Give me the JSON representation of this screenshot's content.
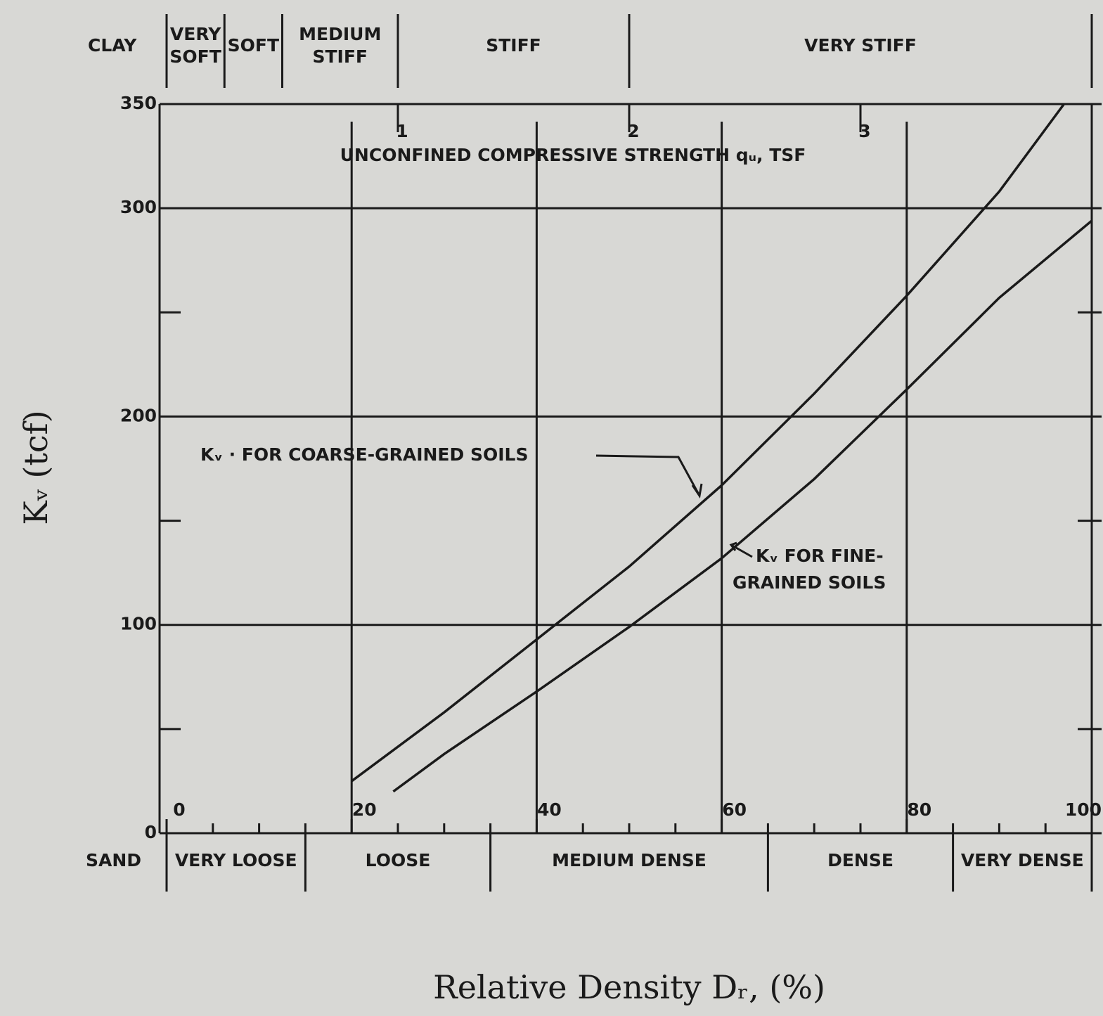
{
  "chart_data": {
    "type": "line",
    "xlabel": "Relative Density Dᵣ, (%)",
    "ylabel": "Kᵥ (tcf)",
    "x2label": "UNCONFINED COMPRESSIVE STRENGTH qᵤ, TSF",
    "xlim": [
      0,
      100
    ],
    "ylim": [
      0,
      350
    ],
    "xticks": [
      0,
      20,
      40,
      60,
      80,
      100
    ],
    "yticks": [
      0,
      100,
      200,
      300,
      350
    ],
    "yminor_ticks": [
      50,
      150,
      250
    ],
    "xminor_ticks": [
      5,
      10,
      15,
      25,
      30,
      35,
      45,
      50,
      55,
      65,
      70,
      75,
      85,
      90,
      95
    ],
    "x2lim": [
      0,
      4
    ],
    "x2ticks": [
      1,
      2,
      3
    ],
    "grid": true,
    "color": "#1a1a1a",
    "series": [
      {
        "name": "Kᵥ · FOR COARSE-GRAINED SOILS",
        "color": "#1a1a1a",
        "x": [
          20,
          30,
          40,
          50,
          60,
          70,
          80,
          90,
          97
        ],
        "values": [
          25,
          58,
          93,
          128,
          167,
          211,
          258,
          308,
          350
        ]
      },
      {
        "name": "Kᵥ FOR FINE-GRAINED SOILS",
        "color": "#1a1a1a",
        "x": [
          24.5,
          30,
          40,
          50,
          60,
          70,
          80,
          90,
          100
        ],
        "values": [
          20,
          38,
          68,
          99,
          132,
          170,
          213,
          257,
          294
        ]
      }
    ],
    "annotations": {
      "coarse": "Kᵥ · FOR COARSE-GRAINED SOILS",
      "fine": [
        "Kᵥ FOR FINE-",
        "GRAINED SOILS"
      ]
    },
    "clay": {
      "title": "CLAY",
      "edges": [
        0,
        0.25,
        0.5,
        1,
        2,
        4
      ],
      "labels": [
        [
          "VERY",
          "SOFT"
        ],
        [
          "SOFT"
        ],
        [
          "MEDIUM",
          "STIFF"
        ],
        [
          "STIFF"
        ],
        [
          "VERY STIFF"
        ]
      ]
    },
    "sand": {
      "title": "SAND",
      "edges": [
        0,
        15,
        35,
        65,
        85,
        100
      ],
      "labels": [
        "VERY LOOSE",
        "LOOSE",
        "MEDIUM DENSE",
        "DENSE",
        "VERY DENSE"
      ]
    }
  }
}
